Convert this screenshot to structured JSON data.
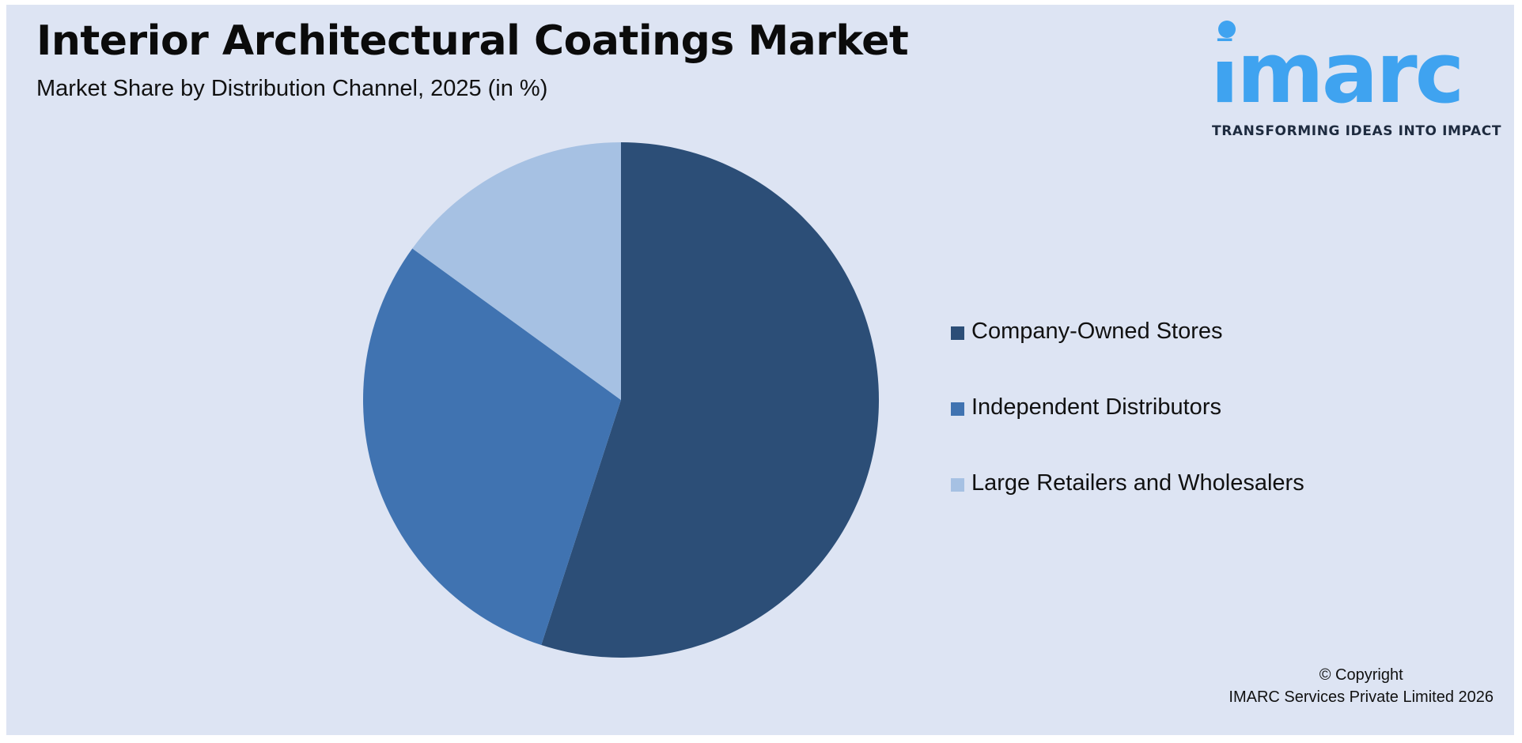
{
  "chart_data": {
    "type": "pie",
    "title": "Interior Architectural Coatings Market",
    "subtitle": "Market Share by Distribution Channel, 2025 (in %)",
    "categories": [
      "Company-Owned Stores",
      "Independent Distributors",
      "Large Retailers and Wholesalers"
    ],
    "values": [
      55,
      30,
      15
    ],
    "colors": [
      "#2c4e77",
      "#4073b1",
      "#a6c1e3"
    ],
    "legend_position": "right"
  },
  "logo": {
    "brand": "imarc",
    "tagline": "TRANSFORMING IDEAS INTO IMPACT",
    "color": "#3fa3f0"
  },
  "copyright": {
    "line1": "© Copyright",
    "line2": "IMARC Services Private Limited 2026"
  }
}
